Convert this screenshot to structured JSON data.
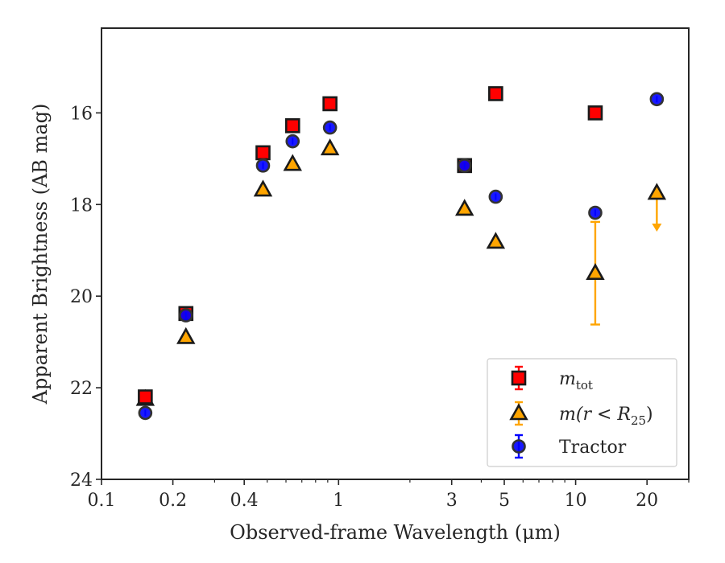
{
  "chart_data": {
    "type": "scatter",
    "xlabel": "Observed-frame Wavelength (μm)",
    "ylabel": "Apparent Brightness (AB mag)",
    "xscale": "log",
    "xlim": [
      0.1,
      30
    ],
    "ylim": [
      24,
      14.15
    ],
    "y_inverted": true,
    "grid": false,
    "legend_placement": "lower-right",
    "x_ticks": [
      {
        "value": 0.1,
        "label": "0.1"
      },
      {
        "value": 0.2,
        "label": "0.2"
      },
      {
        "value": 0.4,
        "label": "0.4"
      },
      {
        "value": 1,
        "label": "1"
      },
      {
        "value": 3,
        "label": "3"
      },
      {
        "value": 5,
        "label": "5"
      },
      {
        "value": 10,
        "label": "10"
      },
      {
        "value": 20,
        "label": "20"
      }
    ],
    "y_ticks": [
      {
        "value": 16,
        "label": "16"
      },
      {
        "value": 18,
        "label": "18"
      },
      {
        "value": 20,
        "label": "20"
      },
      {
        "value": 22,
        "label": "22"
      },
      {
        "value": 24,
        "label": "24"
      }
    ],
    "series": [
      {
        "key": "mtot",
        "label_main": "m",
        "label_sub": "tot",
        "marker": "square",
        "color": "#ff0000",
        "edge": "#1a1a1a",
        "points": [
          {
            "x": 0.153,
            "y": 22.2
          },
          {
            "x": 0.227,
            "y": 20.38
          },
          {
            "x": 0.48,
            "y": 16.87
          },
          {
            "x": 0.64,
            "y": 16.28
          },
          {
            "x": 0.92,
            "y": 15.8
          },
          {
            "x": 3.4,
            "y": 17.15
          },
          {
            "x": 4.6,
            "y": 15.58
          },
          {
            "x": 12.1,
            "y": 16.0
          }
        ]
      },
      {
        "key": "mr25",
        "label_main": "m(r < R",
        "label_sub": "25",
        "label_end": ")",
        "marker": "triangle",
        "color": "#ffa500",
        "edge": "#1a1a1a",
        "points": [
          {
            "x": 0.153,
            "y": 22.25
          },
          {
            "x": 0.227,
            "y": 20.9
          },
          {
            "x": 0.48,
            "y": 17.68
          },
          {
            "x": 0.64,
            "y": 17.12
          },
          {
            "x": 0.92,
            "y": 16.78
          },
          {
            "x": 3.4,
            "y": 18.1
          },
          {
            "x": 4.6,
            "y": 18.82
          },
          {
            "x": 12.1,
            "y": 19.5,
            "err_low": 1.12,
            "err_high": 1.12
          },
          {
            "x": 22.0,
            "y": 17.75,
            "upper_limit": true
          }
        ]
      },
      {
        "key": "tractor",
        "label_main": "Tractor",
        "marker": "circle",
        "color": "#0000ff",
        "edge": "#333333",
        "points": [
          {
            "x": 0.153,
            "y": 22.55
          },
          {
            "x": 0.227,
            "y": 20.42
          },
          {
            "x": 0.48,
            "y": 17.15
          },
          {
            "x": 0.64,
            "y": 16.62
          },
          {
            "x": 0.92,
            "y": 16.32
          },
          {
            "x": 3.4,
            "y": 17.15
          },
          {
            "x": 4.6,
            "y": 17.83
          },
          {
            "x": 12.1,
            "y": 18.18
          },
          {
            "x": 22.0,
            "y": 15.7
          }
        ]
      }
    ]
  }
}
